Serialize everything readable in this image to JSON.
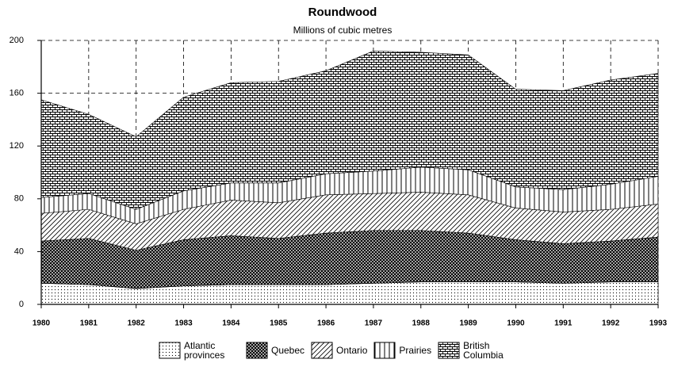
{
  "chart_data": {
    "type": "stacked-area",
    "title": "Roundwood",
    "subtitle": "Millions of cubic metres",
    "x": [
      1980,
      1981,
      1982,
      1983,
      1984,
      1985,
      1986,
      1987,
      1988,
      1989,
      1990,
      1991,
      1992,
      1993
    ],
    "xlim": [
      1980,
      1993
    ],
    "xticks": [
      1980,
      1981,
      1982,
      1983,
      1984,
      1985,
      1986,
      1987,
      1988,
      1989,
      1990,
      1991,
      1992,
      1993
    ],
    "ylim": [
      0,
      200
    ],
    "yticks": [
      0,
      40,
      80,
      120,
      160,
      200
    ],
    "grid": true,
    "series": [
      {
        "name": "Atlantic provinces",
        "color": "#000000",
        "pattern": "dots",
        "values": [
          16,
          15,
          12,
          14,
          15,
          15,
          15,
          16,
          17,
          17,
          17,
          16,
          17,
          17
        ]
      },
      {
        "name": "Quebec",
        "color": "#000000",
        "pattern": "crosshatch",
        "values": [
          32,
          35,
          29,
          35,
          37,
          35,
          39,
          40,
          39,
          37,
          32,
          30,
          31,
          34
        ]
      },
      {
        "name": "Ontario",
        "color": "#000000",
        "pattern": "diagonal",
        "values": [
          21,
          22,
          20,
          23,
          27,
          27,
          29,
          28,
          29,
          29,
          24,
          24,
          24,
          25
        ]
      },
      {
        "name": "Prairies",
        "color": "#000000",
        "pattern": "vertical",
        "values": [
          12,
          12,
          11,
          14,
          13,
          15,
          16,
          17,
          19,
          19,
          16,
          17,
          19,
          21
        ]
      },
      {
        "name": "British Columbia",
        "color": "#000000",
        "pattern": "brick",
        "values": [
          74,
          60,
          55,
          71,
          76,
          77,
          78,
          91,
          87,
          87,
          74,
          75,
          79,
          78
        ]
      }
    ]
  }
}
